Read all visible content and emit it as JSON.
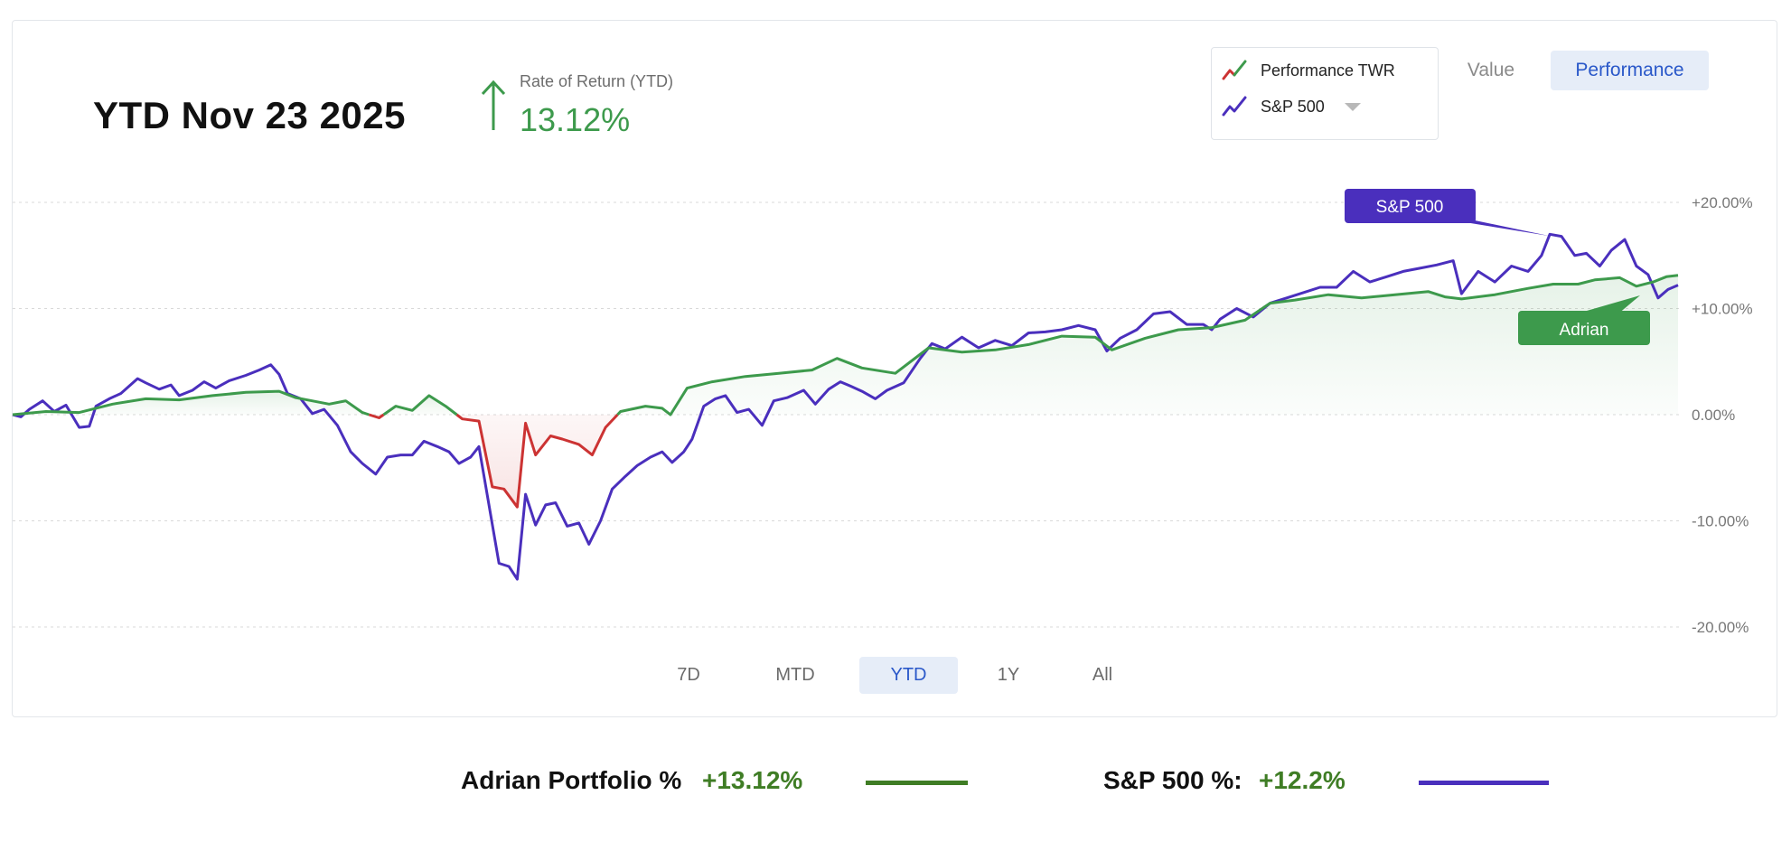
{
  "header": {
    "title": "YTD Nov 23 2025",
    "ror_label": "Rate of Return (YTD)",
    "ror_value": "13.12%"
  },
  "legend": {
    "items": [
      {
        "label": "Performance TWR"
      },
      {
        "label": "S&P 500"
      }
    ]
  },
  "mode_toggle": {
    "value_label": "Value",
    "performance_label": "Performance",
    "selected": "Performance"
  },
  "range_buttons": [
    {
      "label": "7D"
    },
    {
      "label": "MTD"
    },
    {
      "label": "YTD"
    },
    {
      "label": "1Y"
    },
    {
      "label": "All"
    }
  ],
  "range_selected": "YTD",
  "summary": {
    "portfolio_label": "Adrian Portfolio %",
    "portfolio_value": "+13.12%",
    "sp_label": "S&P 500 %:",
    "sp_value": "+12.2%"
  },
  "colors": {
    "portfolio_positive": "#3d9a4c",
    "portfolio_negative": "#cc3333",
    "sp500": "#4a2fbd",
    "accent": "#2a58c9",
    "summary_portfolio_swatch": "#3f7d25",
    "summary_sp_swatch": "#4a2fbd"
  },
  "chart_data": {
    "type": "line",
    "x_domain": [
      0,
      100
    ],
    "ylim": [
      -20,
      20
    ],
    "yticks": [
      20,
      10,
      0,
      -10,
      -20
    ],
    "ytick_labels": [
      "+20.00%",
      "+10.00%",
      "0.00%",
      "-10.00%",
      "-20.00%"
    ],
    "grid": true,
    "series": [
      {
        "name": "Adrian",
        "values": [
          [
            0,
            0
          ],
          [
            2,
            0.3
          ],
          [
            4,
            0.2
          ],
          [
            6,
            1.0
          ],
          [
            8,
            1.5
          ],
          [
            10,
            1.4
          ],
          [
            12,
            1.8
          ],
          [
            14,
            2.1
          ],
          [
            16,
            2.2
          ],
          [
            17,
            1.6
          ],
          [
            19,
            1.0
          ],
          [
            20,
            1.3
          ],
          [
            21,
            0.2
          ],
          [
            22,
            -0.3
          ],
          [
            23,
            0.8
          ],
          [
            24,
            0.4
          ],
          [
            25,
            1.8
          ],
          [
            26,
            0.8
          ],
          [
            27,
            -0.4
          ],
          [
            28,
            -0.6
          ],
          [
            28.8,
            -6.8
          ],
          [
            29.5,
            -7.0
          ],
          [
            30.3,
            -8.7
          ],
          [
            30.8,
            -0.8
          ],
          [
            31.4,
            -3.8
          ],
          [
            32.3,
            -2.0
          ],
          [
            33,
            -2.3
          ],
          [
            34,
            -2.8
          ],
          [
            34.8,
            -3.8
          ],
          [
            35.6,
            -1.2
          ],
          [
            36.5,
            0.3
          ],
          [
            38,
            0.8
          ],
          [
            39,
            0.6
          ],
          [
            39.5,
            0.0
          ],
          [
            40.5,
            2.5
          ],
          [
            42,
            3.1
          ],
          [
            44,
            3.6
          ],
          [
            46,
            3.9
          ],
          [
            48,
            4.2
          ],
          [
            49.5,
            5.3
          ],
          [
            51,
            4.4
          ],
          [
            53,
            3.9
          ],
          [
            55,
            6.3
          ],
          [
            57,
            5.9
          ],
          [
            59,
            6.1
          ],
          [
            61,
            6.6
          ],
          [
            63,
            7.4
          ],
          [
            65,
            7.3
          ],
          [
            66,
            6.1
          ],
          [
            68,
            7.2
          ],
          [
            70,
            8.0
          ],
          [
            72,
            8.2
          ],
          [
            74,
            8.9
          ],
          [
            75.5,
            10.5
          ],
          [
            77,
            10.8
          ],
          [
            79,
            11.3
          ],
          [
            81,
            11.0
          ],
          [
            83,
            11.3
          ],
          [
            85,
            11.6
          ],
          [
            86,
            11.1
          ],
          [
            87,
            10.9
          ],
          [
            89,
            11.3
          ],
          [
            91,
            11.9
          ],
          [
            92.5,
            12.3
          ],
          [
            94,
            12.3
          ],
          [
            95,
            12.7
          ],
          [
            96.5,
            12.9
          ],
          [
            97.5,
            12.1
          ],
          [
            98.5,
            12.5
          ],
          [
            99.3,
            13.0
          ],
          [
            100,
            13.12
          ]
        ]
      },
      {
        "name": "S&P 500",
        "values": [
          [
            0,
            0
          ],
          [
            0.5,
            -0.2
          ],
          [
            1,
            0.5
          ],
          [
            1.8,
            1.3
          ],
          [
            2.5,
            0.3
          ],
          [
            3.2,
            0.9
          ],
          [
            4,
            -1.2
          ],
          [
            4.6,
            -1.1
          ],
          [
            5,
            0.8
          ],
          [
            5.8,
            1.5
          ],
          [
            6.5,
            2.0
          ],
          [
            7.5,
            3.4
          ],
          [
            8,
            3.0
          ],
          [
            8.8,
            2.4
          ],
          [
            9.5,
            2.8
          ],
          [
            10,
            1.8
          ],
          [
            10.8,
            2.3
          ],
          [
            11.5,
            3.1
          ],
          [
            12.2,
            2.5
          ],
          [
            13,
            3.2
          ],
          [
            14,
            3.7
          ],
          [
            14.8,
            4.2
          ],
          [
            15.5,
            4.7
          ],
          [
            16,
            3.8
          ],
          [
            16.5,
            2.0
          ],
          [
            17.3,
            1.5
          ],
          [
            18,
            0.1
          ],
          [
            18.7,
            0.5
          ],
          [
            19.5,
            -1.0
          ],
          [
            20.3,
            -3.5
          ],
          [
            21,
            -4.6
          ],
          [
            21.8,
            -5.6
          ],
          [
            22.5,
            -4.0
          ],
          [
            23.3,
            -3.8
          ],
          [
            24,
            -3.8
          ],
          [
            24.7,
            -2.5
          ],
          [
            25.5,
            -3.0
          ],
          [
            26.2,
            -3.5
          ],
          [
            26.8,
            -4.6
          ],
          [
            27.5,
            -4.0
          ],
          [
            28,
            -3.0
          ],
          [
            28.6,
            -8.5
          ],
          [
            29.2,
            -14.0
          ],
          [
            29.8,
            -14.3
          ],
          [
            30.3,
            -15.5
          ],
          [
            30.8,
            -7.5
          ],
          [
            31.4,
            -10.4
          ],
          [
            32,
            -8.5
          ],
          [
            32.6,
            -8.3
          ],
          [
            33.3,
            -10.5
          ],
          [
            34,
            -10.2
          ],
          [
            34.6,
            -12.2
          ],
          [
            35.3,
            -10.0
          ],
          [
            36,
            -7.0
          ],
          [
            36.8,
            -5.8
          ],
          [
            37.5,
            -4.8
          ],
          [
            38.3,
            -4.0
          ],
          [
            39,
            -3.5
          ],
          [
            39.6,
            -4.5
          ],
          [
            40.3,
            -3.5
          ],
          [
            40.8,
            -2.3
          ],
          [
            41.5,
            0.8
          ],
          [
            42.2,
            1.5
          ],
          [
            42.8,
            1.8
          ],
          [
            43.5,
            0.2
          ],
          [
            44.2,
            0.5
          ],
          [
            45,
            -1.0
          ],
          [
            45.7,
            1.3
          ],
          [
            46.5,
            1.6
          ],
          [
            47.5,
            2.3
          ],
          [
            48.2,
            1.0
          ],
          [
            49,
            2.4
          ],
          [
            49.7,
            3.1
          ],
          [
            50.3,
            2.7
          ],
          [
            51,
            2.2
          ],
          [
            51.8,
            1.5
          ],
          [
            52.5,
            2.3
          ],
          [
            53.5,
            3.0
          ],
          [
            54.5,
            5.3
          ],
          [
            55.2,
            6.7
          ],
          [
            56,
            6.2
          ],
          [
            57,
            7.3
          ],
          [
            58,
            6.3
          ],
          [
            59,
            7.0
          ],
          [
            60,
            6.5
          ],
          [
            61,
            7.7
          ],
          [
            62,
            7.8
          ],
          [
            63,
            8.0
          ],
          [
            64,
            8.4
          ],
          [
            65,
            8.0
          ],
          [
            65.7,
            6.0
          ],
          [
            66.5,
            7.2
          ],
          [
            67.5,
            8.0
          ],
          [
            68.5,
            9.5
          ],
          [
            69.5,
            9.7
          ],
          [
            70.5,
            8.5
          ],
          [
            71.5,
            8.5
          ],
          [
            72,
            8.0
          ],
          [
            72.5,
            9.0
          ],
          [
            73.5,
            10.0
          ],
          [
            74.5,
            9.2
          ],
          [
            75.5,
            10.5
          ],
          [
            76.5,
            11.0
          ],
          [
            77.5,
            11.5
          ],
          [
            78.5,
            12.0
          ],
          [
            79.5,
            12.0
          ],
          [
            80.5,
            13.5
          ],
          [
            81.5,
            12.5
          ],
          [
            82.5,
            13.0
          ],
          [
            83.5,
            13.5
          ],
          [
            84.5,
            13.8
          ],
          [
            85.5,
            14.1
          ],
          [
            86.5,
            14.5
          ],
          [
            87,
            11.4
          ],
          [
            88,
            13.5
          ],
          [
            89,
            12.5
          ],
          [
            90,
            14.0
          ],
          [
            91,
            13.5
          ],
          [
            91.8,
            15.0
          ],
          [
            92.3,
            17.0
          ],
          [
            93,
            16.8
          ],
          [
            93.8,
            15.0
          ],
          [
            94.5,
            15.2
          ],
          [
            95.3,
            14.0
          ],
          [
            96,
            15.5
          ],
          [
            96.8,
            16.5
          ],
          [
            97.5,
            14.0
          ],
          [
            98.2,
            13.2
          ],
          [
            98.8,
            11.0
          ],
          [
            99.4,
            11.8
          ],
          [
            100,
            12.2
          ]
        ]
      }
    ],
    "annotations": [
      {
        "label": "S&P 500",
        "series": "S&P 500"
      },
      {
        "label": "Adrian",
        "series": "Adrian"
      }
    ]
  }
}
